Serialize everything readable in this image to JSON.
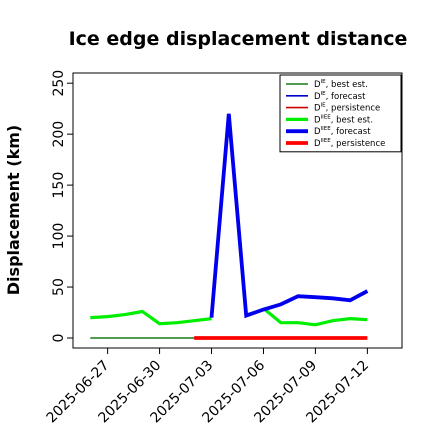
{
  "chart_data": {
    "type": "line",
    "title": "Ice edge displacement distance",
    "xlabel": "",
    "ylabel": "Displacement (km)",
    "ylim": [
      0,
      260
    ],
    "y_ticks": [
      0,
      50,
      100,
      150,
      200,
      250
    ],
    "xlim": [
      "2025-06-25",
      "2025-07-14"
    ],
    "x_ticks": [
      {
        "date": "2025-06-27",
        "label": "2025-06-27",
        "color": "#000000"
      },
      {
        "date": "2025-06-30",
        "label": "2025-06-30",
        "color": "#000000"
      },
      {
        "date": "2025-07-03",
        "label": "2025-07-03",
        "color": "#1a8a1a"
      },
      {
        "date": "2025-07-06",
        "label": "2025-07-06",
        "color": "#000000"
      },
      {
        "date": "2025-07-09",
        "label": "2025-07-09",
        "color": "#000000"
      },
      {
        "date": "2025-07-12",
        "label": "2025-07-12",
        "color": "#000000"
      }
    ],
    "grid": false,
    "legend_position": "top-right",
    "series": [
      {
        "name": "D^IE, best est.",
        "base": "D",
        "sup": "IE",
        "suffix": ", best est.",
        "color": "#1a7a1a",
        "width": 1.6,
        "x": [
          "2025-06-26",
          "2025-06-27",
          "2025-06-28",
          "2025-06-29",
          "2025-06-30",
          "2025-07-01",
          "2025-07-02",
          "2025-07-03"
        ],
        "y": [
          0,
          0,
          0,
          0,
          0,
          0,
          0,
          0
        ]
      },
      {
        "name": "D^IE, forecast",
        "base": "D",
        "sup": "IE",
        "suffix": ", forecast",
        "color": "#0000cc",
        "width": 1.6,
        "x": [],
        "y": []
      },
      {
        "name": "D^IE, persistence",
        "base": "D",
        "sup": "IE",
        "suffix": ", persistence",
        "color": "#cc0000",
        "width": 1.6,
        "x": [],
        "y": []
      },
      {
        "name": "D^IIEE, best est.",
        "base": "D",
        "sup": "IIEE",
        "suffix": ", best est.",
        "color": "#00ee00",
        "width": 3.2,
        "x": [
          "2025-06-26",
          "2025-06-27",
          "2025-06-28",
          "2025-06-29",
          "2025-06-30",
          "2025-07-01",
          "2025-07-02",
          "2025-07-03",
          "2025-07-04",
          "2025-07-05",
          "2025-07-06",
          "2025-07-07",
          "2025-07-08",
          "2025-07-09",
          "2025-07-10",
          "2025-07-11",
          "2025-07-12"
        ],
        "y": [
          20,
          21,
          23,
          26,
          14,
          15,
          17,
          19,
          null,
          null,
          29,
          15,
          15,
          13,
          17,
          19,
          18
        ]
      },
      {
        "name": "D^IIEE, forecast",
        "base": "D",
        "sup": "IIEE",
        "suffix": ", forecast",
        "color": "#0000ee",
        "width": 3.8,
        "x": [
          "2025-07-03",
          "2025-07-04",
          "2025-07-05",
          "2025-07-06",
          "2025-07-07",
          "2025-07-08",
          "2025-07-09",
          "2025-07-10",
          "2025-07-11",
          "2025-07-12"
        ],
        "y": [
          20,
          220,
          22,
          28,
          33,
          41,
          40,
          39,
          37,
          46
        ]
      },
      {
        "name": "D^IIEE, persistence",
        "base": "D",
        "sup": "IIEE",
        "suffix": ", persistence",
        "color": "#ff0000",
        "width": 3.8,
        "x": [
          "2025-07-02",
          "2025-07-03",
          "2025-07-04",
          "2025-07-05",
          "2025-07-06",
          "2025-07-07",
          "2025-07-08",
          "2025-07-09",
          "2025-07-10",
          "2025-07-11",
          "2025-07-12"
        ],
        "y": [
          0,
          0,
          0,
          0,
          0,
          0,
          0,
          0,
          0,
          0,
          0
        ]
      }
    ]
  }
}
